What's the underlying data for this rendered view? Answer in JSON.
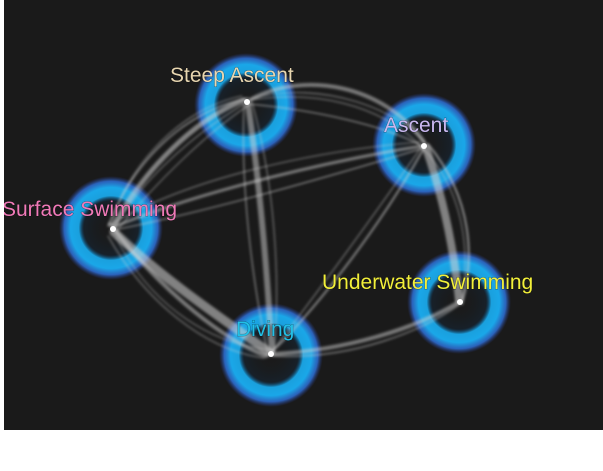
{
  "diagram": {
    "background_color": "#1a1a1a",
    "ring_color": "#1aa7e8",
    "edge_color": "#cfcfcf",
    "nodes": [
      {
        "id": "steep-ascent",
        "label": "Steep Ascent",
        "label_color": "#e8d6b0"
      },
      {
        "id": "ascent",
        "label": "Ascent",
        "label_color": "#c9b8f0"
      },
      {
        "id": "surface-swimming",
        "label": "Surface Swimming",
        "label_color": "#f07ab8"
      },
      {
        "id": "underwater-swimming",
        "label": "Underwater Swimming",
        "label_color": "#f2ef3a"
      },
      {
        "id": "diving",
        "label": "Diving",
        "label_color": "#22c0e6"
      }
    ]
  }
}
